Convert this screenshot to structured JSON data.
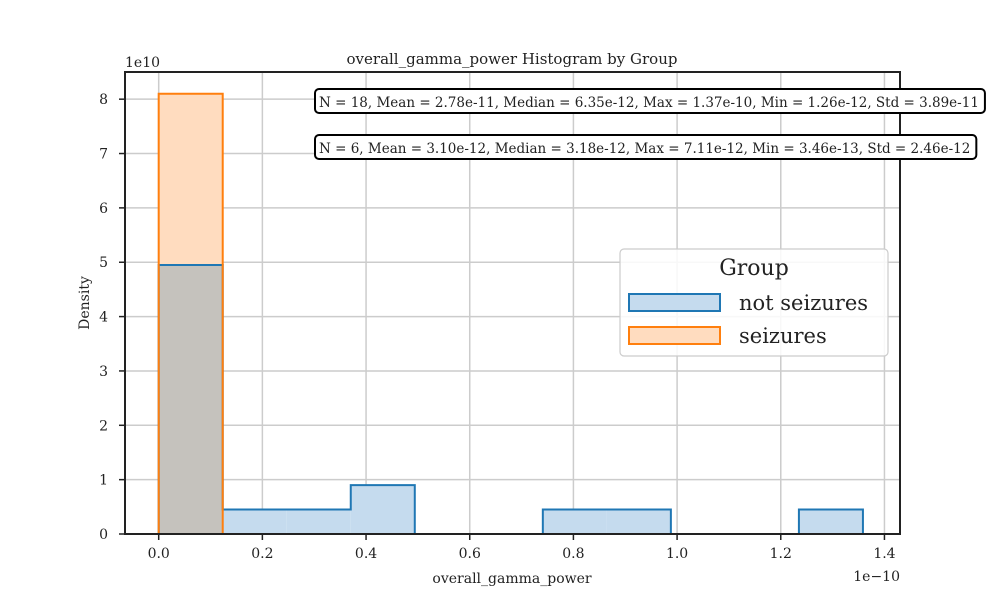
{
  "chart_data": {
    "type": "histogram",
    "title": "overall_gamma_power Histogram by Group",
    "xlabel": "overall_gamma_power",
    "ylabel": "Density",
    "x_offset_label": "1e−10",
    "y_offset_label": "1e10",
    "x_scale": 1e-10,
    "y_scale": 10000000000.0,
    "xlim": [
      -0.065,
      1.43
    ],
    "ylim": [
      0,
      8.5
    ],
    "x_ticks": [
      0.0,
      0.2,
      0.4,
      0.6,
      0.8,
      1.0,
      1.2,
      1.4
    ],
    "x_tick_labels": [
      "0.0",
      "0.2",
      "0.4",
      "0.6",
      "0.8",
      "1.0",
      "1.2",
      "1.4"
    ],
    "y_ticks": [
      0,
      1,
      2,
      3,
      4,
      5,
      6,
      7,
      8
    ],
    "y_tick_labels": [
      "0",
      "1",
      "2",
      "3",
      "4",
      "5",
      "6",
      "7",
      "8"
    ],
    "grid": true,
    "bin_edges": [
      0.0,
      0.1235,
      0.247,
      0.3705,
      0.494,
      0.6175,
      0.741,
      0.8645,
      0.988,
      1.1115,
      1.235,
      1.3585
    ],
    "series": [
      {
        "name": "not seizures",
        "color": "#1f77b4",
        "fill": "#c5dbee",
        "values": [
          4.95,
          0.45,
          0.45,
          0.9,
          0,
          0,
          0.45,
          0.45,
          0,
          0,
          0.45
        ]
      },
      {
        "name": "seizures",
        "color": "#ff7f0e",
        "fill": "#ffdcbf",
        "values": [
          8.1,
          0,
          0,
          0,
          0,
          0,
          0,
          0,
          0,
          0,
          0
        ]
      }
    ],
    "overlap_fill": "#c5c2bd",
    "annotations": [
      "N = 18, Mean = 2.78e-11, Median = 6.35e-12, Max = 1.37e-10, Min = 1.26e-12, Std = 3.89e-11",
      "N = 6, Mean = 3.10e-12, Median = 3.18e-12, Max = 7.11e-12, Min = 3.46e-13, Std = 2.46e-12"
    ],
    "legend": {
      "title": "Group",
      "placement": "center-right"
    }
  }
}
